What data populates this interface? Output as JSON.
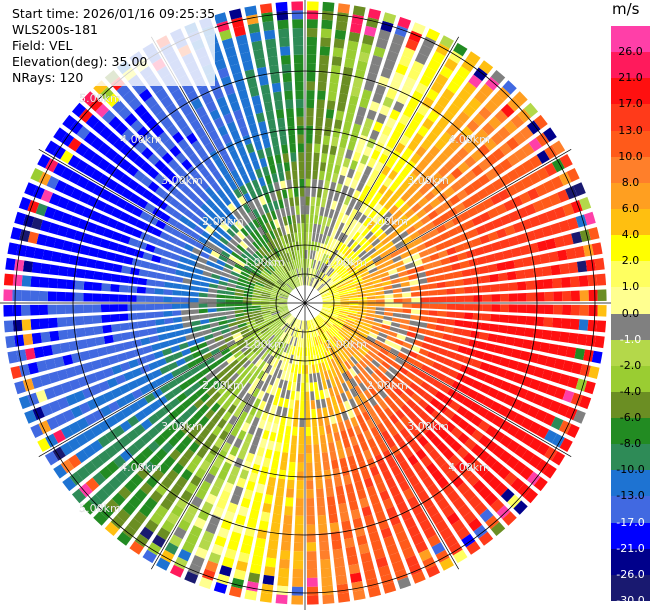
{
  "header": {
    "start_time": "Start time: 2026/01/16 09:25:35",
    "instrument": "WLS200s-181",
    "field": "Field: VEL",
    "elevation": "Elevation(deg): 35.00",
    "nrays": "NRays: 120"
  },
  "colorbar": {
    "title": "m/s",
    "labels": [
      "26.0",
      "21.0",
      "17.0",
      "13.0",
      "10.0",
      "8.0",
      "6.0",
      "4.0",
      "2.0",
      "1.0",
      "0.0",
      "-1.0",
      "-2.0",
      "-4.0",
      "-6.0",
      "-8.0",
      "-10.0",
      "-13.0",
      "-17.0",
      "-21.0",
      "-26.0",
      "-30.0"
    ],
    "colors": [
      "#ff3fa8",
      "#ff1a5c",
      "#ff1010",
      "#ff3a1a",
      "#ff5a1a",
      "#ff7f2a",
      "#ff9f20",
      "#ffbf10",
      "#ffff00",
      "#ffff60",
      "#ffff90",
      "#808080",
      "#b4d84a",
      "#9acd32",
      "#6b8e23",
      "#228b22",
      "#2e8b57",
      "#1e73d2",
      "#4169e1",
      "#0000ff",
      "#00008b",
      "#191970"
    ]
  },
  "chart_data": {
    "type": "heatmap",
    "projection": "polar PPI",
    "field": "VEL",
    "units": "m/s",
    "range_rings_km": [
      "1.00km",
      "2.00km",
      "3.00km",
      "4.00km",
      "5.00km"
    ],
    "n_rays": 120,
    "max_range_km": 5.2,
    "vmin": -30.0,
    "vmax": 30.0,
    "pattern": {
      "description": "velocity increases radially; negative toward west/northwest, positive toward east/southeast",
      "flow_direction_deg": 290,
      "amplitude_ms": 19
    }
  }
}
